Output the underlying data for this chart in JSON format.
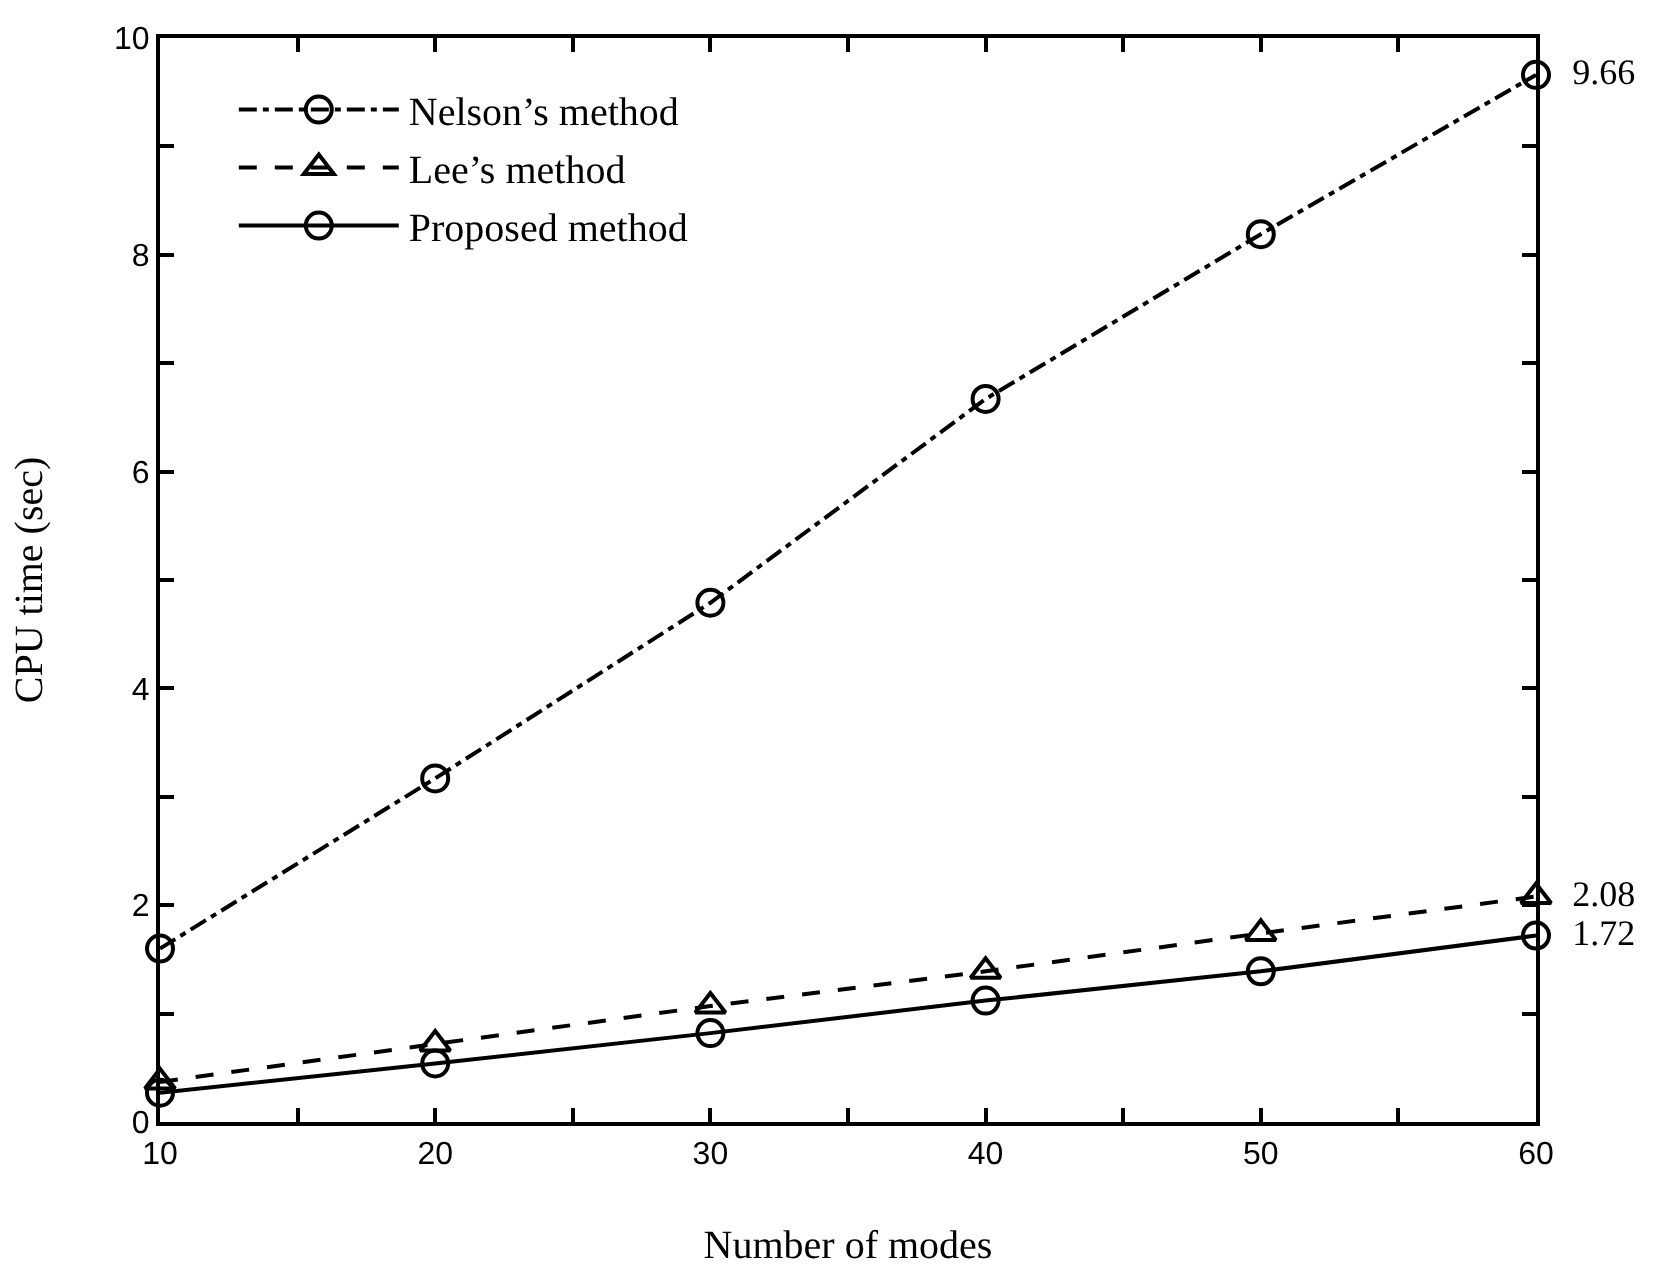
{
  "chart_data": {
    "type": "line",
    "xlabel": "Number of modes",
    "ylabel": "CPU time (sec)",
    "x": [
      10,
      20,
      30,
      40,
      50,
      60
    ],
    "series": [
      {
        "name": "Nelson’s method",
        "color": "#000000",
        "marker": "circle",
        "line_style": "dashdot",
        "values": [
          1.6,
          3.17,
          4.79,
          6.67,
          8.19,
          9.66
        ],
        "value_labels": [
          null,
          null,
          null,
          null,
          null,
          "9.66"
        ]
      },
      {
        "name": "Lee’s method",
        "color": "#000000",
        "marker": "triangle",
        "line_style": "dashed",
        "values": [
          0.37,
          0.72,
          1.07,
          1.39,
          1.74,
          2.08
        ],
        "value_labels": [
          null,
          null,
          null,
          null,
          null,
          "2.08"
        ]
      },
      {
        "name": "Proposed method",
        "color": "#000000",
        "marker": "circle",
        "line_style": "solid",
        "values": [
          0.27,
          0.54,
          0.82,
          1.12,
          1.39,
          1.72
        ],
        "value_labels": [
          null,
          null,
          null,
          null,
          null,
          "1.72"
        ]
      }
    ],
    "xlim": [
      10,
      60
    ],
    "ylim": [
      0,
      10
    ],
    "xticks": [
      10,
      {
        "value": 15,
        "label": null
      },
      20,
      {
        "value": 25,
        "label": null
      },
      30,
      {
        "value": 35,
        "label": null
      },
      40,
      {
        "value": 45,
        "label": null
      },
      50,
      {
        "value": 55,
        "label": null
      },
      60
    ],
    "yticks": [
      0,
      {
        "value": 1,
        "label": null
      },
      2,
      {
        "value": 3,
        "label": null
      },
      4,
      {
        "value": 5,
        "label": null
      },
      6,
      {
        "value": 7,
        "label": null
      },
      8,
      {
        "value": 9,
        "label": null
      },
      10
    ],
    "grid": false,
    "legend": "top left"
  }
}
